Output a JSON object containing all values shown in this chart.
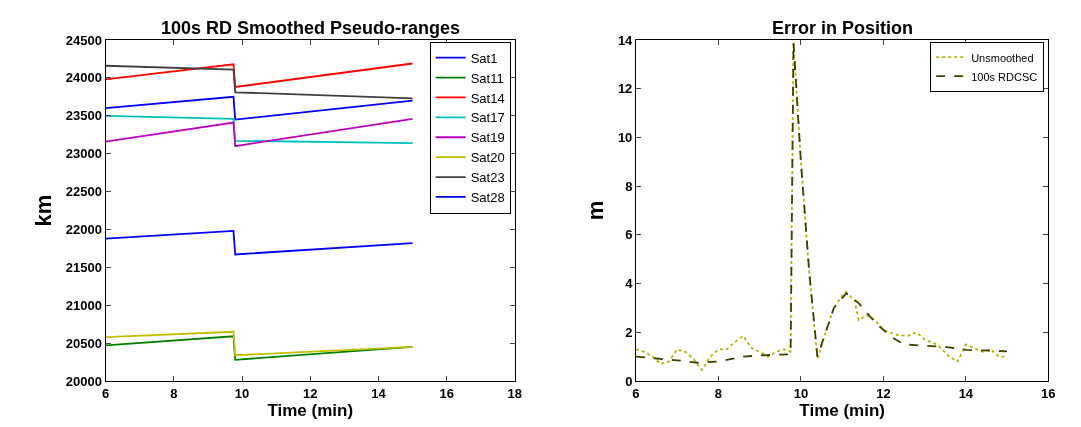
{
  "chart_data": [
    {
      "type": "line",
      "title": "100s RD Smoothed Pseudo-ranges",
      "xlabel": "Time (min)",
      "ylabel": "km",
      "xlim": [
        6,
        18
      ],
      "xticks": [
        6,
        8,
        10,
        12,
        14,
        16,
        18
      ],
      "ylim": [
        20000,
        24500
      ],
      "yticks": [
        20000,
        20500,
        21000,
        21500,
        22000,
        22500,
        23000,
        23500,
        24000,
        24500
      ],
      "legend": "top right",
      "line_style": "solid",
      "marker": "none",
      "series": [
        {
          "name": "Sat1",
          "color": "#0000ff",
          "x": [
            6,
            9.75,
            9.8,
            15
          ],
          "values": [
            23600,
            23750,
            23450,
            23700
          ]
        },
        {
          "name": "Sat11",
          "color": "#008000",
          "x": [
            6,
            9.75,
            9.8,
            15
          ],
          "values": [
            20470,
            20590,
            20280,
            20450
          ]
        },
        {
          "name": "Sat14",
          "color": "#ff0000",
          "x": [
            6,
            9.75,
            9.8,
            15
          ],
          "values": [
            23980,
            24180,
            23880,
            24190
          ]
        },
        {
          "name": "Sat17",
          "color": "#00bfbf",
          "x": [
            6,
            9.75,
            9.8,
            15
          ],
          "values": [
            23500,
            23460,
            23170,
            23140
          ]
        },
        {
          "name": "Sat19",
          "color": "#bf00bf",
          "x": [
            6,
            9.75,
            9.8,
            15
          ],
          "values": [
            23160,
            23410,
            23100,
            23460
          ]
        },
        {
          "name": "Sat20",
          "color": "#bfbf00",
          "x": [
            6,
            9.75,
            9.8,
            15
          ],
          "values": [
            20580,
            20650,
            20340,
            20450
          ]
        },
        {
          "name": "Sat23",
          "color": "#404040",
          "x": [
            6,
            9.75,
            9.8,
            15
          ],
          "values": [
            24160,
            24110,
            23810,
            23730
          ]
        },
        {
          "name": "Sat28",
          "color": "#0000ff",
          "x": [
            6,
            9.75,
            9.8,
            15
          ],
          "values": [
            21880,
            21980,
            21670,
            21820
          ]
        }
      ]
    },
    {
      "type": "line",
      "title": "Error in Position",
      "xlabel": "Time (min)",
      "ylabel": "m",
      "xlim": [
        6,
        16
      ],
      "xticks": [
        6,
        8,
        10,
        12,
        14,
        16
      ],
      "ylim": [
        0,
        14
      ],
      "yticks": [
        0,
        2,
        4,
        6,
        8,
        10,
        12,
        14
      ],
      "legend": "top right",
      "marker": "none",
      "series": [
        {
          "name": "Unsmoothed",
          "color": "#b5b500",
          "line_style": "dotted",
          "x": [
            6,
            6.2,
            6.4,
            6.6,
            6.8,
            7.0,
            7.2,
            7.4,
            7.6,
            7.8,
            8.0,
            8.2,
            8.4,
            8.6,
            8.8,
            9.0,
            9.2,
            9.4,
            9.6,
            9.75,
            9.82,
            10,
            10.2,
            10.4,
            10.6,
            10.8,
            11.0,
            11.1,
            11.3,
            11.4,
            11.6,
            11.8,
            12.0,
            12.3,
            12.6,
            12.8,
            13.0,
            13.3,
            13.6,
            13.8,
            14.0,
            14.2,
            14.4,
            14.6,
            14.8,
            15
          ],
          "values": [
            1.3,
            1.2,
            1.0,
            0.7,
            0.8,
            1.3,
            1.2,
            0.9,
            0.45,
            1.0,
            1.3,
            1.3,
            1.6,
            1.85,
            1.35,
            1.2,
            1.0,
            1.2,
            1.3,
            1.2,
            13.9,
            9,
            4.5,
            0.9,
            2.0,
            3.0,
            3.5,
            3.65,
            3.3,
            2.5,
            2.7,
            2.5,
            2.1,
            1.9,
            1.85,
            2.0,
            1.7,
            1.5,
            1.0,
            0.8,
            1.5,
            1.35,
            1.2,
            1.3,
            1.0,
            1.0
          ]
        },
        {
          "name": "100s RDCSC",
          "color": "#404000",
          "line_style": "dashed",
          "x": [
            6,
            7,
            7.5,
            8,
            8.6,
            9,
            9.75,
            9.82,
            10,
            10.2,
            10.4,
            10.6,
            10.8,
            11.1,
            11.4,
            11.8,
            12.2,
            12.5,
            13,
            13.5,
            14,
            15
          ],
          "values": [
            1.0,
            0.85,
            0.75,
            0.8,
            1.0,
            1.05,
            1.1,
            13.9,
            9,
            4.5,
            1.0,
            2.0,
            3.0,
            3.6,
            3.2,
            2.4,
            1.8,
            1.5,
            1.45,
            1.4,
            1.28,
            1.22
          ]
        }
      ]
    }
  ]
}
